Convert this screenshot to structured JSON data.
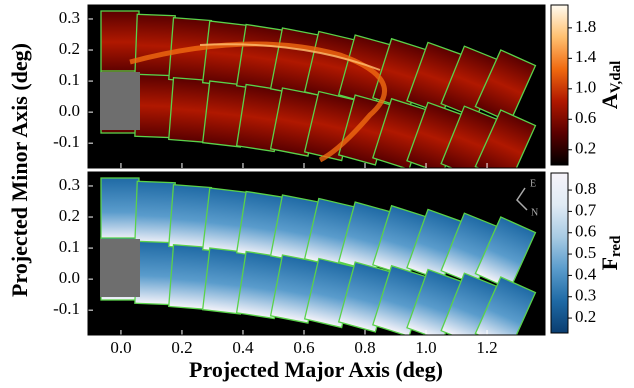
{
  "chart_data": [
    {
      "type": "image",
      "y_label": "Projected Minor Axis (deg)",
      "ylim": [
        -0.18,
        0.345
      ],
      "yticks": [
        -0.1,
        {
          "value": 0,
          "label": "0.0"
        },
        0.1,
        0.2,
        0.3
      ],
      "colorbar": {
        "label": "A",
        "label_sub": "V,dal",
        "clim": [
          0,
          2.1
        ],
        "ticks": [
          0.2,
          0.6,
          {
            "value": 1,
            "label": "1.0"
          },
          1.4,
          1.8
        ],
        "colors": [
          "#000000",
          "#5a0000",
          "#b01800",
          "#f06a10",
          "#ffc070",
          "#fffbf0"
        ]
      }
    },
    {
      "type": "image",
      "x_label": "Projected Major Axis (deg)",
      "xlim": [
        -0.108,
        1.39
      ],
      "xticks": [
        {
          "value": 0,
          "label": "0.0"
        },
        0.2,
        0.4,
        0.6,
        0.8,
        {
          "value": 1,
          "label": "1.0"
        },
        1.2
      ],
      "ylim": [
        -0.18,
        0.345
      ],
      "yticks": [
        -0.1,
        {
          "value": 0,
          "label": "0.0"
        },
        0.1,
        0.2,
        0.3
      ],
      "compass": {
        "east": "E",
        "north": "N"
      },
      "colorbar": {
        "label": "F",
        "label_sub": "red",
        "clim": [
          0.13,
          0.88
        ],
        "ticks": [
          0.2,
          0.3,
          0.4,
          0.5,
          0.6,
          0.7,
          0.8
        ],
        "colors": [
          "#0a3d70",
          "#1f6aa5",
          "#5a9ccc",
          "#a8cbe3",
          "#e0ebf4",
          "#f6f4fa"
        ]
      }
    }
  ]
}
